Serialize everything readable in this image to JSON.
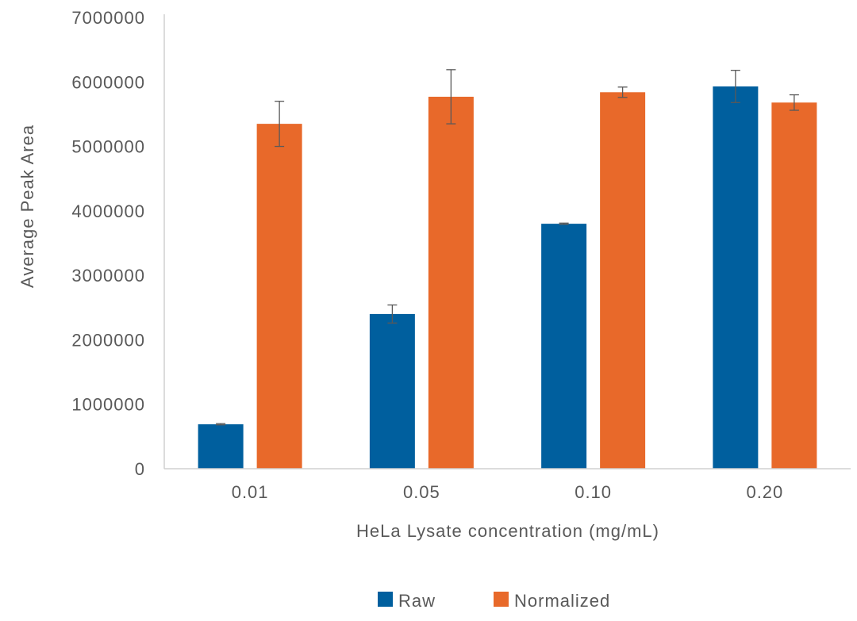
{
  "chart_data": {
    "type": "bar",
    "title": "",
    "xlabel": "HeLa Lysate concentration (mg/mL)",
    "ylabel": "Average Peak Area",
    "categories": [
      "0.01",
      "0.05",
      "0.10",
      "0.20"
    ],
    "ylim": [
      0,
      7000000
    ],
    "yticks": [
      "0",
      "1000000",
      "2000000",
      "3000000",
      "4000000",
      "5000000",
      "6000000",
      "7000000"
    ],
    "grid": false,
    "legend_position": "bottom",
    "series": [
      {
        "name": "Raw",
        "color": "#005f9e",
        "values": [
          690000,
          2400000,
          3800000,
          5930000
        ],
        "error": [
          10000,
          140000,
          10000,
          250000
        ]
      },
      {
        "name": "Normalized",
        "color": "#e8692a",
        "values": [
          5350000,
          5770000,
          5840000,
          5680000
        ],
        "error": [
          350000,
          420000,
          80000,
          120000
        ]
      }
    ]
  }
}
